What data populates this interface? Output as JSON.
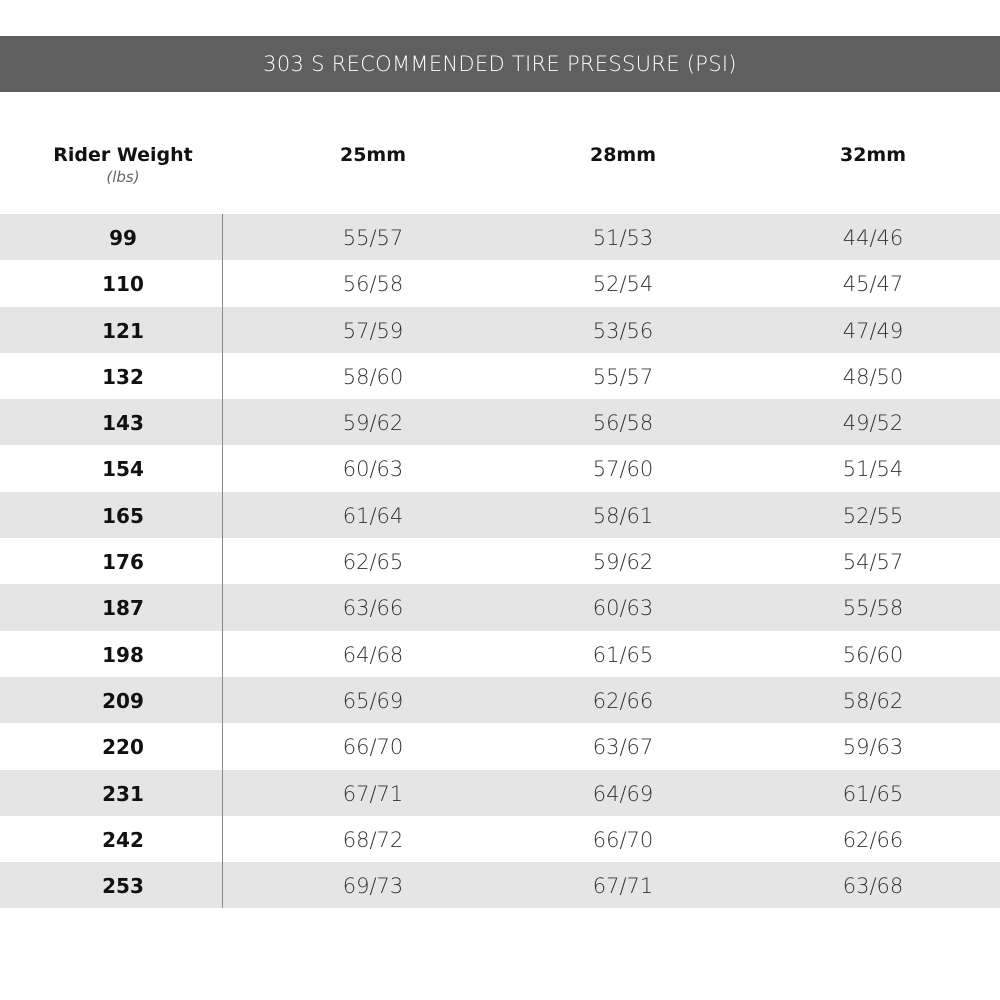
{
  "title": "303 S RECOMMENDED TIRE PRESSURE (PSI)",
  "header": {
    "weight_label": "Rider Weight",
    "weight_unit": "(lbs)",
    "columns": [
      "25mm",
      "28mm",
      "32mm"
    ]
  },
  "colors": {
    "banner": "#5f5f5f",
    "stripe": "#e5e5e5"
  },
  "rows": [
    [
      "99",
      "55/57",
      "51/53",
      "44/46"
    ],
    [
      "110",
      "56/58",
      "52/54",
      "45/47"
    ],
    [
      "121",
      "57/59",
      "53/56",
      "47/49"
    ],
    [
      "132",
      "58/60",
      "55/57",
      "48/50"
    ],
    [
      "143",
      "59/62",
      "56/58",
      "49/52"
    ],
    [
      "154",
      "60/63",
      "57/60",
      "51/54"
    ],
    [
      "165",
      "61/64",
      "58/61",
      "52/55"
    ],
    [
      "176",
      "62/65",
      "59/62",
      "54/57"
    ],
    [
      "187",
      "63/66",
      "60/63",
      "55/58"
    ],
    [
      "198",
      "64/68",
      "61/65",
      "56/60"
    ],
    [
      "209",
      "65/69",
      "62/66",
      "58/62"
    ],
    [
      "220",
      "66/70",
      "63/67",
      "59/63"
    ],
    [
      "231",
      "67/71",
      "64/69",
      "61/65"
    ],
    [
      "242",
      "68/72",
      "66/70",
      "62/66"
    ],
    [
      "253",
      "69/73",
      "67/71",
      "63/68"
    ]
  ]
}
